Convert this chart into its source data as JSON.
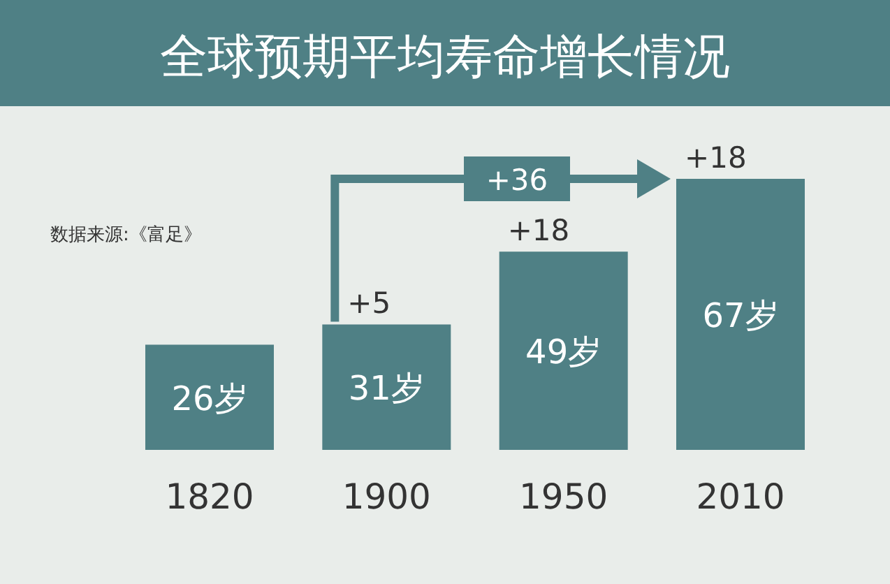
{
  "chart_data": {
    "type": "bar",
    "title": "全球预期平均寿命增长情况",
    "categories": [
      "1820",
      "1900",
      "1950",
      "2010"
    ],
    "values": [
      26,
      31,
      49,
      67
    ],
    "value_labels": [
      "26岁",
      "31岁",
      "49岁",
      "67岁"
    ],
    "color": "#4f8085",
    "annotations": [
      "数据来源:《富足》",
      {
        "text": "+5",
        "x": "1900",
        "y": 31
      },
      {
        "text": "+18",
        "x": "1950",
        "y": 49
      },
      {
        "text": "+18",
        "x": "2010",
        "y": 67
      },
      "+36"
    ]
  }
}
